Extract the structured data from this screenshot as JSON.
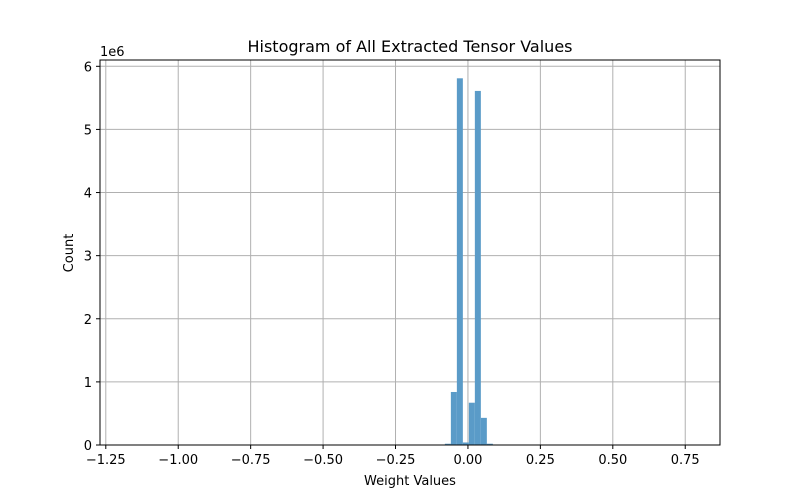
{
  "chart_data": {
    "type": "bar",
    "title": "Histogram of All Extracted Tensor Values",
    "xlabel": "Weight Values",
    "ylabel": "Count",
    "y_offset_label": "1e6",
    "xlim": [
      -1.27,
      0.87
    ],
    "ylim": [
      0,
      6.1
    ],
    "grid": true,
    "bar_color": "#5a9bc8",
    "xticks": [
      -1.25,
      -1.0,
      -0.75,
      -0.5,
      -0.25,
      0.0,
      0.25,
      0.5,
      0.75
    ],
    "xtick_labels": [
      "−1.25",
      "−1.00",
      "−0.75",
      "−0.50",
      "−0.25",
      "0.00",
      "0.25",
      "0.50",
      "0.75"
    ],
    "yticks": [
      0,
      1,
      2,
      3,
      4,
      5,
      6
    ],
    "ytick_labels": [
      "0",
      "1",
      "2",
      "3",
      "4",
      "5",
      "6"
    ],
    "bin_width": 0.0207,
    "bars": [
      {
        "x": -0.0693,
        "count": 0.02
      },
      {
        "x": -0.0486,
        "count": 0.84
      },
      {
        "x": -0.0279,
        "count": 5.81
      },
      {
        "x": -0.0072,
        "count": 0.04
      },
      {
        "x": 0.0135,
        "count": 0.67
      },
      {
        "x": 0.0342,
        "count": 5.61
      },
      {
        "x": 0.0549,
        "count": 0.43
      },
      {
        "x": 0.0756,
        "count": 0.02
      }
    ]
  }
}
